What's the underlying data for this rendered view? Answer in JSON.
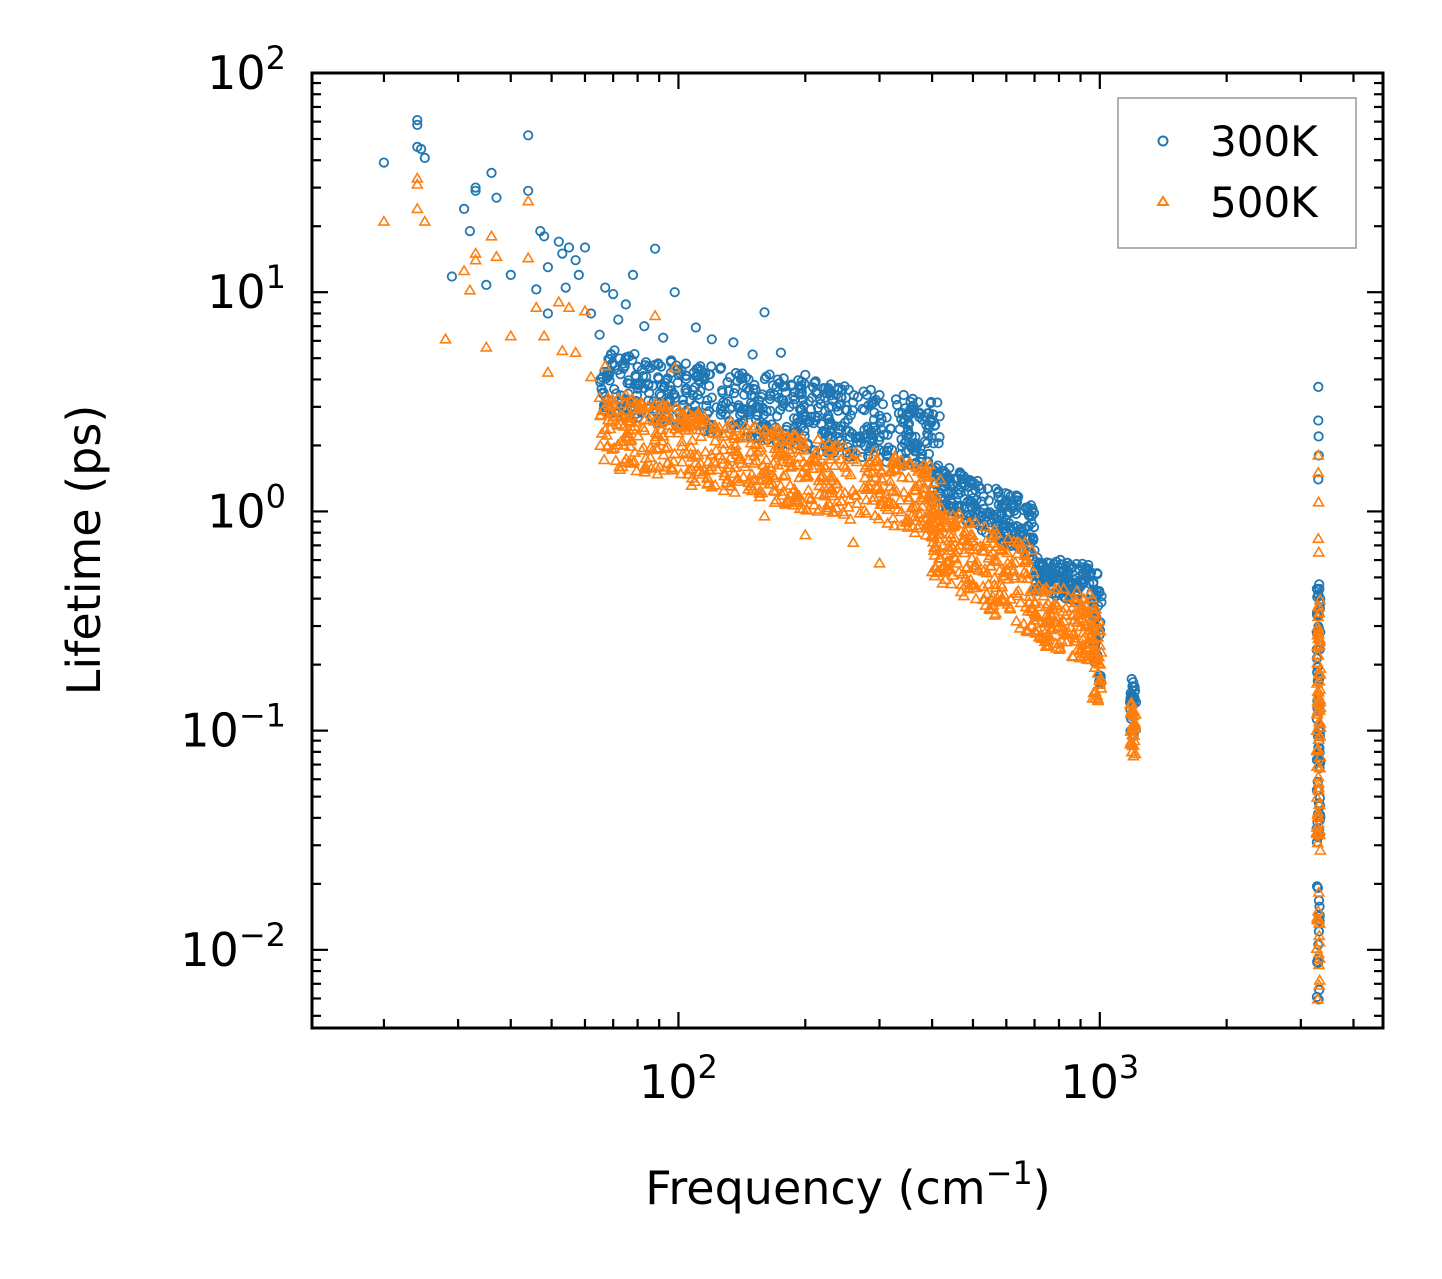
{
  "chart_data": {
    "type": "scatter",
    "title": "",
    "xlabel": "Frequency (cm",
    "xlabel_sup": "−1",
    "xlabel_suffix": ")",
    "ylabel": "Lifetime (ps)",
    "xscale": "log",
    "yscale": "log",
    "xlim": [
      13.5,
      4700
    ],
    "ylim": [
      0.0044,
      100
    ],
    "x_ticks": [
      {
        "value": 100,
        "base": "10",
        "exp": "2"
      },
      {
        "value": 1000,
        "base": "10",
        "exp": "3"
      }
    ],
    "y_ticks": [
      {
        "value": 100,
        "base": "10",
        "exp": "2"
      },
      {
        "value": 10,
        "base": "10",
        "exp": "1"
      },
      {
        "value": 1,
        "base": "10",
        "exp": "0"
      },
      {
        "value": 0.1,
        "base": "10",
        "exp": "−1"
      },
      {
        "value": 0.01,
        "base": "10",
        "exp": "−2"
      }
    ],
    "legend_position": "top-right",
    "series": [
      {
        "name": "300K",
        "marker": "circle",
        "color": "#1f77b4",
        "points": [
          [
            20,
            39
          ],
          [
            24,
            61
          ],
          [
            24,
            58
          ],
          [
            24,
            46
          ],
          [
            24.5,
            45
          ],
          [
            25,
            41
          ],
          [
            29,
            11.8
          ],
          [
            31,
            24
          ],
          [
            32,
            19
          ],
          [
            33,
            29
          ],
          [
            33,
            30
          ],
          [
            35,
            10.8
          ],
          [
            36,
            35
          ],
          [
            37,
            27
          ],
          [
            40,
            12
          ],
          [
            44,
            52
          ],
          [
            44,
            29
          ],
          [
            46,
            10.3
          ],
          [
            47,
            19
          ],
          [
            48,
            18
          ],
          [
            49,
            13
          ],
          [
            49,
            8
          ],
          [
            52,
            17
          ],
          [
            53,
            15
          ],
          [
            54,
            10.5
          ],
          [
            55,
            16
          ],
          [
            57,
            14
          ],
          [
            58,
            12
          ],
          [
            60,
            16
          ],
          [
            62,
            8
          ],
          [
            65,
            6.4
          ],
          [
            67,
            10.5
          ],
          [
            70,
            9.8
          ],
          [
            72,
            7.5
          ],
          [
            75,
            8.8
          ],
          [
            78,
            12
          ],
          [
            83,
            7
          ],
          [
            88,
            15.8
          ],
          [
            92,
            6.2
          ],
          [
            98,
            10
          ],
          [
            110,
            6.9
          ],
          [
            120,
            6.1
          ],
          [
            135,
            5.9
          ],
          [
            150,
            5.2
          ],
          [
            160,
            8.1
          ],
          [
            175,
            5.3
          ],
          [
            200,
            4.2
          ],
          [
            230,
            3.8
          ],
          [
            280,
            3.4
          ],
          [
            350,
            2.7
          ],
          [
            3300,
            3.7
          ],
          [
            3300,
            2.6
          ],
          [
            3305,
            2.2
          ],
          [
            3310,
            1.8
          ],
          [
            3300,
            1.4
          ]
        ],
        "bands": [
          {
            "xmin": 65,
            "xmax": 420,
            "ytop": [
              5.6,
              3.2
            ],
            "ybot": [
              2.8,
              1.5
            ],
            "n": 620
          },
          {
            "xmin": 400,
            "xmax": 700,
            "ytop": [
              1.7,
              1.1
            ],
            "ybot": [
              1.1,
              0.6
            ],
            "n": 240
          },
          {
            "xmin": 700,
            "xmax": 960,
            "ytop": [
              0.62,
              0.58
            ],
            "ybot": [
              0.42,
              0.38
            ],
            "n": 140
          },
          {
            "xmin": 960,
            "xmax": 1010,
            "ytop": [
              0.55,
              0.5
            ],
            "ybot": [
              0.2,
              0.15
            ],
            "n": 40
          },
          {
            "xmin": 1180,
            "xmax": 1220,
            "ytop": [
              0.19,
              0.15
            ],
            "ybot": [
              0.1,
              0.09
            ],
            "n": 30
          },
          {
            "xmin": 3270,
            "xmax": 3340,
            "ytop": [
              0.5,
              0.45
            ],
            "ybot": [
              0.03,
              0.03
            ],
            "n": 70
          },
          {
            "xmin": 3270,
            "xmax": 3330,
            "ytop": [
              0.02,
              0.02
            ],
            "ybot": [
              0.0056,
              0.0056
            ],
            "n": 16
          }
        ]
      },
      {
        "name": "500K",
        "marker": "triangle",
        "color": "#ff7f0e",
        "points": [
          [
            20,
            21
          ],
          [
            24,
            33
          ],
          [
            24,
            31
          ],
          [
            24,
            24
          ],
          [
            25,
            21
          ],
          [
            28,
            6.1
          ],
          [
            31,
            12.5
          ],
          [
            32,
            10.2
          ],
          [
            33,
            15
          ],
          [
            33,
            14
          ],
          [
            35,
            5.6
          ],
          [
            36,
            18
          ],
          [
            37,
            14.5
          ],
          [
            40,
            6.3
          ],
          [
            44,
            26
          ],
          [
            44,
            14.3
          ],
          [
            46,
            8.5
          ],
          [
            48,
            6.3
          ],
          [
            49,
            4.3
          ],
          [
            52,
            9
          ],
          [
            53,
            5.4
          ],
          [
            55,
            8.5
          ],
          [
            57,
            5.3
          ],
          [
            60,
            8.2
          ],
          [
            62,
            4.1
          ],
          [
            65,
            3.3
          ],
          [
            67,
            4.6
          ],
          [
            70,
            2.7
          ],
          [
            75,
            3.4
          ],
          [
            80,
            2.9
          ],
          [
            88,
            7.8
          ],
          [
            92,
            2.2
          ],
          [
            98,
            4.5
          ],
          [
            110,
            1.8
          ],
          [
            130,
            1.35
          ],
          [
            160,
            0.95
          ],
          [
            200,
            0.78
          ],
          [
            260,
            0.72
          ],
          [
            300,
            0.58
          ],
          [
            400,
            0.53
          ],
          [
            3300,
            1.8
          ],
          [
            3300,
            1.5
          ],
          [
            3305,
            1.1
          ],
          [
            3300,
            0.75
          ],
          [
            3310,
            0.65
          ]
        ],
        "bands": [
          {
            "xmin": 65,
            "xmax": 420,
            "ytop": [
              3.6,
              1.6
            ],
            "ybot": [
              1.6,
              0.75
            ],
            "n": 620
          },
          {
            "xmin": 400,
            "xmax": 700,
            "ytop": [
              1.1,
              0.7
            ],
            "ybot": [
              0.5,
              0.26
            ],
            "n": 240
          },
          {
            "xmin": 700,
            "xmax": 960,
            "ytop": [
              0.47,
              0.42
            ],
            "ybot": [
              0.25,
              0.2
            ],
            "n": 140
          },
          {
            "xmin": 960,
            "xmax": 1010,
            "ytop": [
              0.4,
              0.35
            ],
            "ybot": [
              0.14,
              0.13
            ],
            "n": 40
          },
          {
            "xmin": 1180,
            "xmax": 1220,
            "ytop": [
              0.14,
              0.12
            ],
            "ybot": [
              0.075,
              0.075
            ],
            "n": 30
          },
          {
            "xmin": 3270,
            "xmax": 3340,
            "ytop": [
              0.45,
              0.4
            ],
            "ybot": [
              0.028,
              0.028
            ],
            "n": 70
          },
          {
            "xmin": 3270,
            "xmax": 3330,
            "ytop": [
              0.02,
              0.02
            ],
            "ybot": [
              0.0056,
              0.0056
            ],
            "n": 16
          }
        ]
      }
    ]
  }
}
